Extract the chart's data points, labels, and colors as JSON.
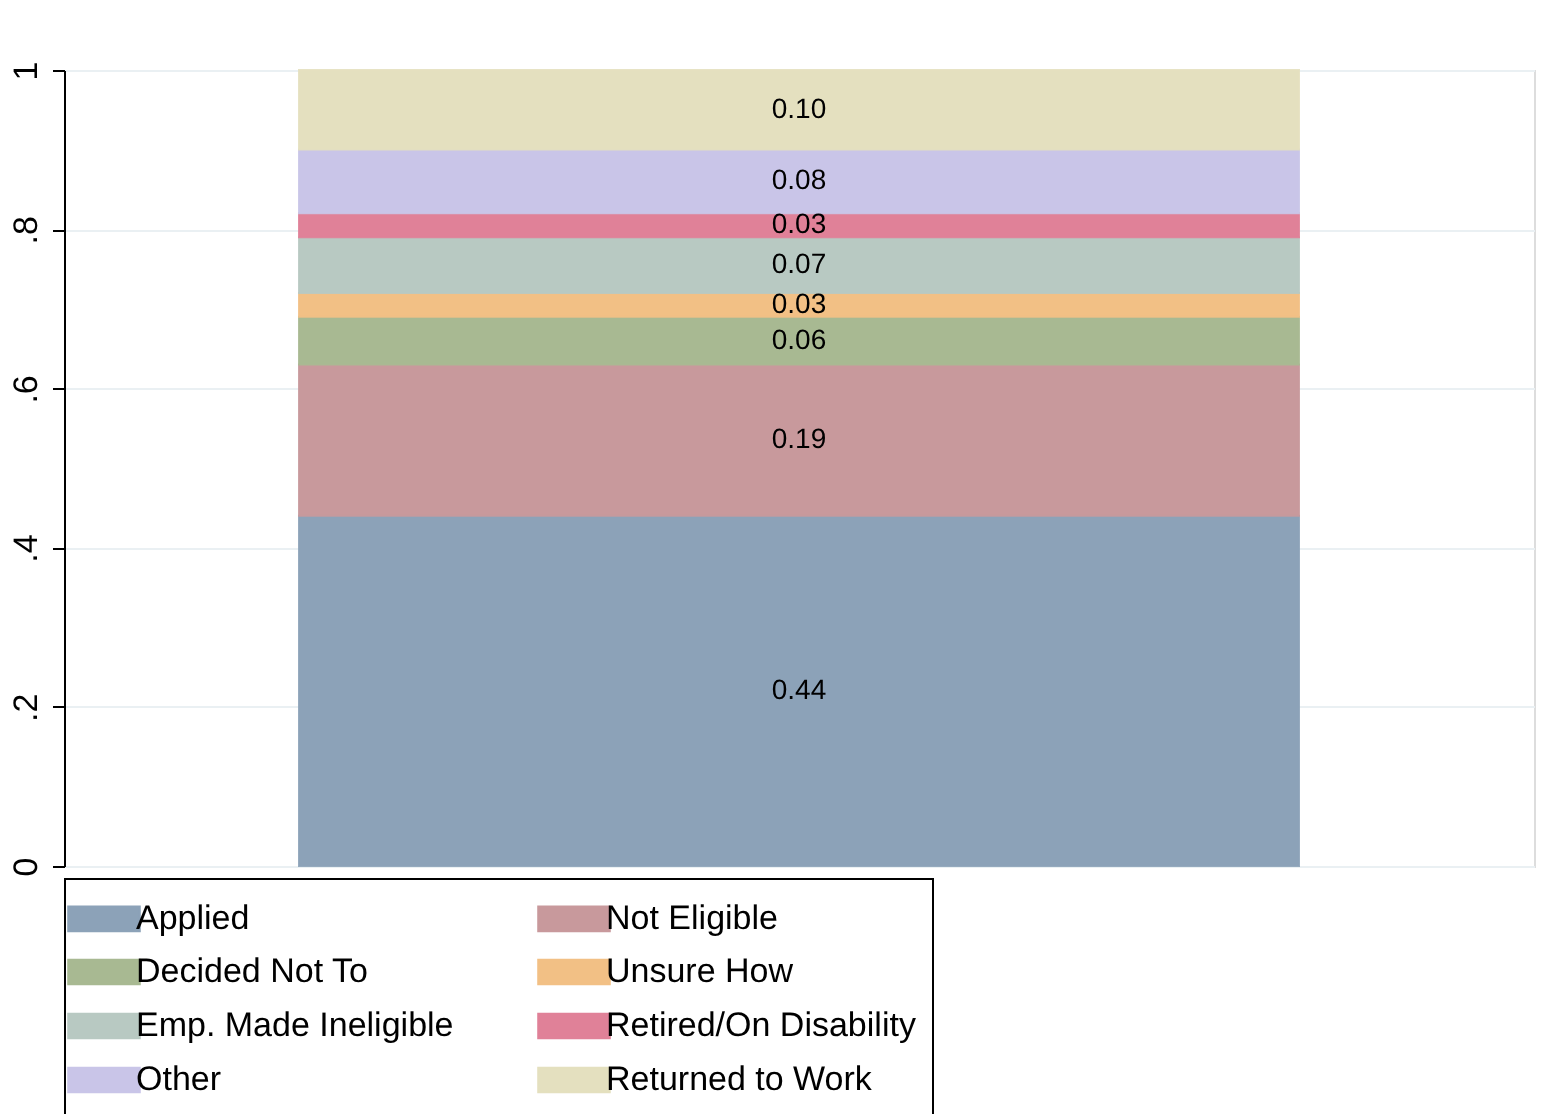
{
  "chart_data": {
    "type": "bar",
    "stacked": true,
    "categories": [
      null
    ],
    "series": [
      {
        "name": "Applied",
        "color": "#8ca2b8",
        "values": [
          0.44
        ]
      },
      {
        "name": "Not Eligible",
        "color": "#c8999c",
        "values": [
          0.19
        ]
      },
      {
        "name": "Decided Not To",
        "color": "#a8b992",
        "values": [
          0.06
        ]
      },
      {
        "name": "Unsure How",
        "color": "#f2c085",
        "values": [
          0.03
        ]
      },
      {
        "name": "Emp. Made Ineligible",
        "color": "#b8c9c2",
        "values": [
          0.07
        ]
      },
      {
        "name": "Retired/On Disability",
        "color": "#e08198",
        "values": [
          0.03
        ]
      },
      {
        "name": "Other",
        "color": "#c9c5e8",
        "values": [
          0.08
        ]
      },
      {
        "name": "Returned to Work",
        "color": "#e4e0bf",
        "values": [
          0.1
        ]
      }
    ],
    "ylim": [
      0,
      1
    ],
    "yticks": [
      0,
      {
        "value": 0.2,
        "label": ".2"
      },
      {
        "value": 0.4,
        "label": ".4"
      },
      {
        "value": 0.6,
        "label": ".6"
      },
      {
        "value": 0.8,
        "label": ".8"
      },
      1
    ],
    "grid": "y",
    "value_labels": [
      "0.44",
      "0.19",
      "0.06",
      "0.03",
      "0.07",
      "0.03",
      "0.08",
      "0.10"
    ],
    "legend": "bottom",
    "tick_labels": "y"
  }
}
